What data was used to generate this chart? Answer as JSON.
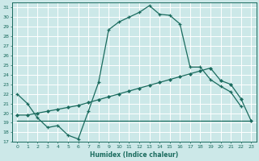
{
  "xlabel": "Humidex (Indice chaleur)",
  "background_color": "#cce8e8",
  "grid_color": "#ffffff",
  "line_color": "#1a6b5e",
  "xlim": [
    -0.5,
    23.5
  ],
  "ylim": [
    17,
    31.5
  ],
  "xticks": [
    0,
    1,
    2,
    3,
    4,
    5,
    6,
    7,
    8,
    9,
    10,
    11,
    12,
    13,
    14,
    15,
    16,
    17,
    18,
    19,
    20,
    21,
    22,
    23
  ],
  "yticks": [
    17,
    18,
    19,
    20,
    21,
    22,
    23,
    24,
    25,
    26,
    27,
    28,
    29,
    30,
    31
  ],
  "line1_x": [
    0,
    1,
    2,
    3,
    4,
    5,
    6,
    7,
    8,
    9,
    10,
    11,
    12,
    13,
    14,
    15,
    16,
    17,
    18,
    19,
    20,
    21,
    22,
    23
  ],
  "line1_y": [
    22.0,
    21.0,
    19.5,
    18.5,
    18.7,
    17.7,
    17.3,
    20.2,
    23.2,
    28.7,
    29.5,
    30.0,
    30.5,
    31.2,
    30.3,
    30.2,
    29.3,
    24.8,
    24.8,
    23.5,
    22.8,
    22.2,
    20.7,
    null
  ],
  "line2_x": [
    0,
    1,
    2,
    3,
    4,
    5,
    6,
    7,
    8,
    9,
    10,
    11,
    12,
    13,
    14,
    15,
    16,
    17,
    18,
    19,
    20,
    21,
    22,
    23
  ],
  "line2_y": [
    19.8,
    19.8,
    20.0,
    20.2,
    20.4,
    20.6,
    20.8,
    21.1,
    21.4,
    21.7,
    22.0,
    22.3,
    22.6,
    22.9,
    23.2,
    23.5,
    23.8,
    24.1,
    24.4,
    24.7,
    23.4,
    23.0,
    21.5,
    19.2
  ],
  "line3_x": [
    0,
    1,
    2,
    3,
    4,
    5,
    6,
    7,
    8,
    9,
    10,
    11,
    12,
    13,
    14,
    15,
    16,
    17,
    18,
    19,
    20,
    21,
    22,
    23
  ],
  "line3_y": [
    19.2,
    19.2,
    19.2,
    19.2,
    19.2,
    19.2,
    19.2,
    19.2,
    19.2,
    19.2,
    19.2,
    19.2,
    19.2,
    19.2,
    19.2,
    19.2,
    19.2,
    19.2,
    19.2,
    19.2,
    19.2,
    19.2,
    19.2,
    19.2
  ]
}
